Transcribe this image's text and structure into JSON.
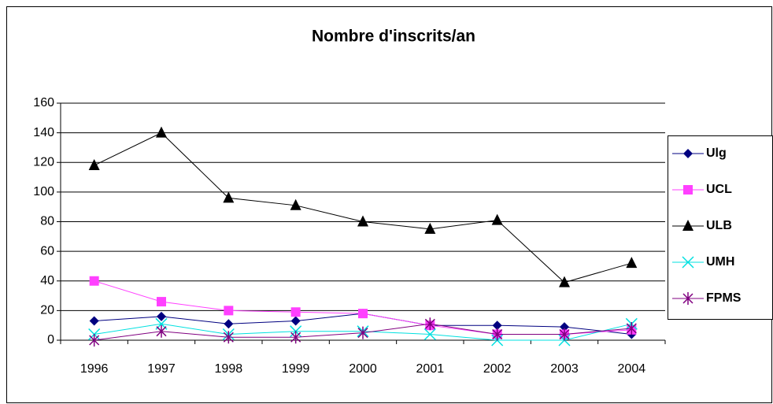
{
  "chart_data": {
    "type": "line",
    "title": "Nombre d'inscrits/an",
    "categories": [
      "1996",
      "1997",
      "1998",
      "1999",
      "2000",
      "2001",
      "2002",
      "2003",
      "2004"
    ],
    "series": [
      {
        "name": "Ulg",
        "color": "#000080",
        "marker": "diamond",
        "values": [
          13,
          16,
          11,
          13,
          18,
          10,
          10,
          9,
          4
        ]
      },
      {
        "name": "UCL",
        "color": "#ff40ff",
        "marker": "square",
        "values": [
          40,
          26,
          20,
          19,
          18,
          10,
          4,
          4,
          7
        ]
      },
      {
        "name": "ULB",
        "color": "#000000",
        "marker": "triangle",
        "values": [
          118,
          140,
          96,
          91,
          80,
          75,
          81,
          39,
          52
        ]
      },
      {
        "name": "UMH",
        "color": "#00e0e0",
        "marker": "x",
        "values": [
          4,
          11,
          4,
          6,
          6,
          4,
          0,
          0,
          11
        ]
      },
      {
        "name": "FPMS",
        "color": "#800080",
        "marker": "star",
        "values": [
          0,
          6,
          2,
          2,
          5,
          11,
          4,
          4,
          8
        ]
      }
    ],
    "ylim": [
      0,
      160
    ],
    "yticks": [
      0,
      20,
      40,
      60,
      80,
      100,
      120,
      140,
      160
    ],
    "grid": true,
    "legend": "right"
  }
}
